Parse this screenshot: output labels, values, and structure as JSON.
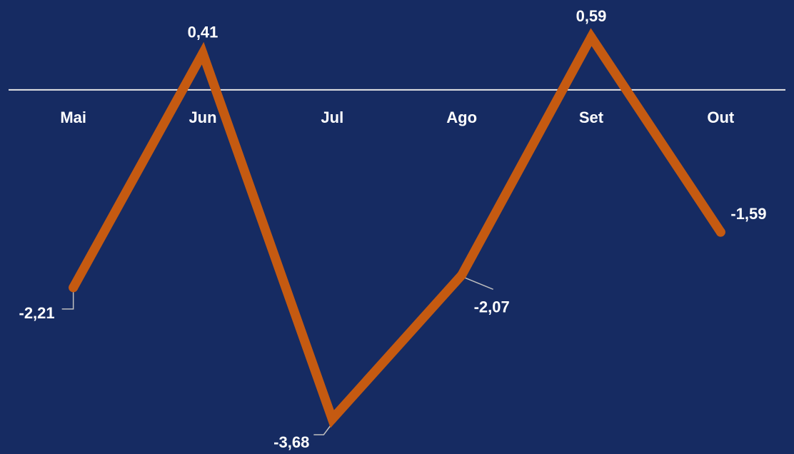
{
  "chart_data": {
    "type": "line",
    "categories": [
      "Mai",
      "Jun",
      "Jul",
      "Ago",
      "Set",
      "Out"
    ],
    "series": [
      {
        "values": [
          -2.21,
          0.41,
          -3.68,
          -2.07,
          0.59,
          -1.59
        ],
        "labels": [
          "-2,21",
          "0,41",
          "-3,68",
          "-2,07",
          "0,59",
          "-1,59"
        ]
      }
    ],
    "title": "",
    "xlabel": "",
    "ylabel": "",
    "ylim": [
      -3.68,
      0.59
    ],
    "grid": false,
    "legend": "none",
    "colors": {
      "background": "#162b62",
      "line": "#c55a11",
      "axis": "#e6e6e6",
      "text": "#ffffff",
      "leader": "#bfbfbf"
    }
  }
}
